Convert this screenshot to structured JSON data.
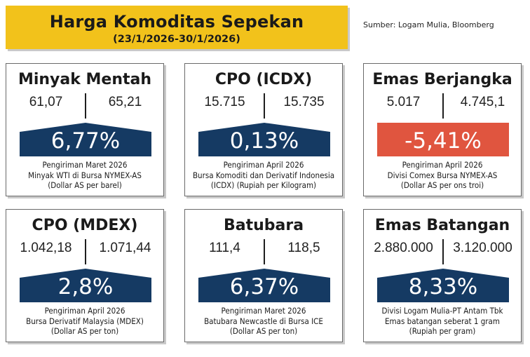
{
  "header": {
    "title": "Harga Komoditas Sepekan",
    "period": "(23/1/2026-30/1/2026)",
    "source": "Sumber: Logam Mulia, Bloomberg"
  },
  "colors": {
    "header_bg": "#f2c21b",
    "up": "#153a63",
    "down": "#e0553f"
  },
  "commodities": [
    {
      "name": "Minyak Mentah",
      "prev": "61,07",
      "curr": "65,21",
      "change": "6,77%",
      "direction": "up",
      "lines": [
        "Pengiriman Maret 2026",
        "Minyak WTI di Bursa NYMEX-AS",
        "(Dollar AS per barel)"
      ]
    },
    {
      "name": "CPO (ICDX)",
      "prev": "15.715",
      "curr": "15.735",
      "change": "0,13%",
      "direction": "up",
      "lines": [
        "Pengiriman April 2026",
        "Bursa Komoditi dan Derivatif Indonesia",
        "(ICDX) (Rupiah per Kilogram)"
      ]
    },
    {
      "name": "Emas Berjangka",
      "prev": "5.017",
      "curr": "4.745,1",
      "change": "-5,41%",
      "direction": "down",
      "lines": [
        "Pengiriman April 2026",
        "Divisi Comex Bursa NYMEX-AS",
        "(Dollar AS per ons troi)"
      ]
    },
    {
      "name": "CPO (MDEX)",
      "prev": "1.042,18",
      "curr": "1.071,44",
      "change": "2,8%",
      "direction": "up",
      "lines": [
        "Pengiriman April 2026",
        "Bursa Derivatif Malaysia (MDEX)",
        "(Dollar AS per ton)"
      ]
    },
    {
      "name": "Batubara",
      "prev": "111,4",
      "curr": "118,5",
      "change": "6,37%",
      "direction": "up",
      "lines": [
        "Pengiriman Maret 2026",
        "Batubara Newcastle di Bursa ICE",
        "(Dollar AS per ton)"
      ]
    },
    {
      "name": "Emas Batangan",
      "prev": "2.880.000",
      "curr": "3.120.000",
      "change": "8,33%",
      "direction": "up",
      "lines": [
        "Divisi Logam Mulia-PT Antam Tbk",
        "Emas batangan seberat 1 gram",
        "(Rupiah per gram)"
      ]
    }
  ]
}
